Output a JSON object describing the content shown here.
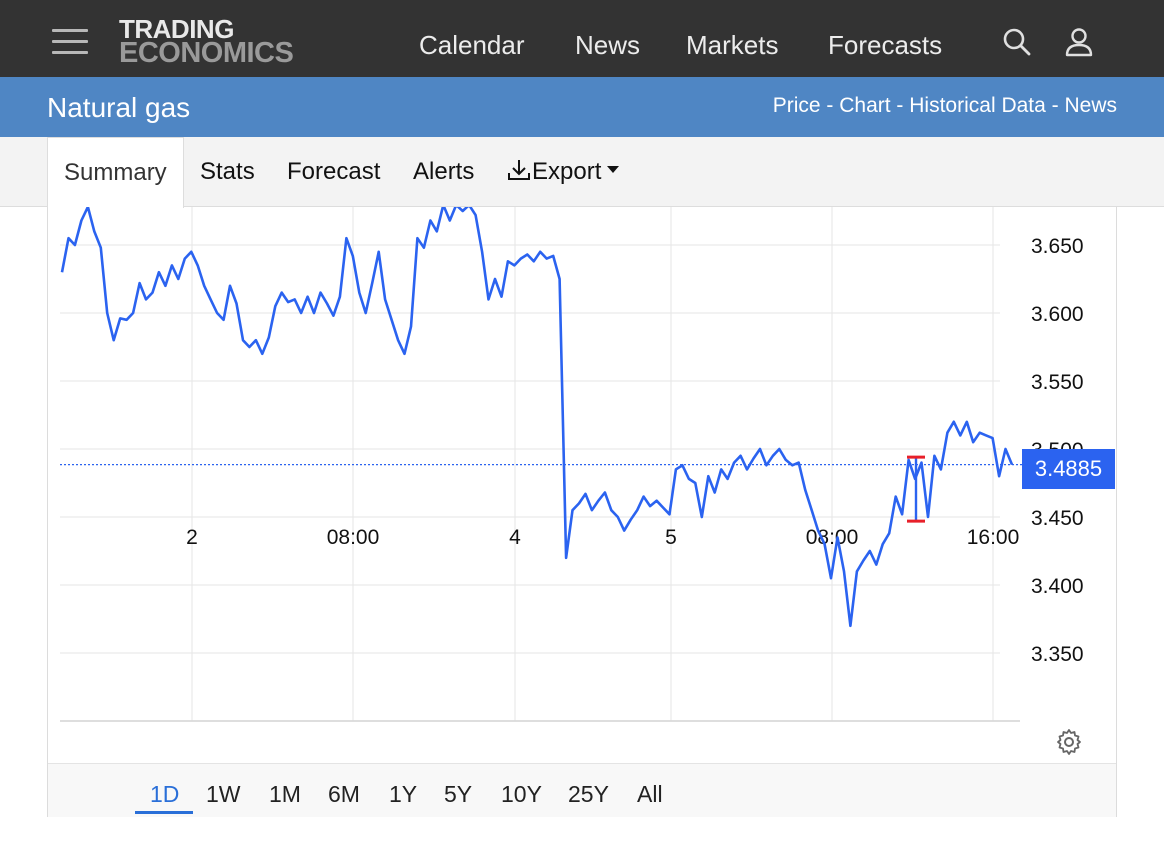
{
  "brand": {
    "line1": "TRADING",
    "line2": "ECONOMICS"
  },
  "nav": [
    "Calendar",
    "News",
    "Markets",
    "Forecasts"
  ],
  "page": {
    "title": "Natural gas",
    "links": [
      "Price",
      "Chart",
      "Historical Data",
      "News"
    ],
    "link_separator": " - "
  },
  "tabs": [
    "Summary",
    "Stats",
    "Forecast",
    "Alerts",
    "Export"
  ],
  "ranges": [
    "1D",
    "1W",
    "1M",
    "6M",
    "1Y",
    "5Y",
    "10Y",
    "25Y",
    "All"
  ],
  "active_range": "1D",
  "icons": {
    "menu": "hamburger-icon",
    "search": "search-icon",
    "user": "user-icon",
    "export": "download-icon",
    "dropdown": "caret-down-icon",
    "settings": "gear-icon"
  },
  "colors": {
    "line": "#2b63f0",
    "accent": "#2a6fd8",
    "header": "#333333",
    "titlebar": "#4f86c4",
    "marker": "#e8202a"
  },
  "current_price_label": "3.4885",
  "chart_data": {
    "type": "line",
    "title": "",
    "xlabel": "",
    "ylabel": "",
    "x_ticks": [
      "2",
      "08:00",
      "4",
      "5",
      "08:00",
      "16:00"
    ],
    "y_ticks": [
      "3.650",
      "3.600",
      "3.550",
      "3.500",
      "3.450",
      "3.400",
      "3.350"
    ],
    "ylim": [
      3.31,
      3.686
    ],
    "current_price": 3.4885,
    "grid": true,
    "legend": "none",
    "series": [
      {
        "values": [
          3.63,
          3.655,
          3.65,
          3.668,
          3.678,
          3.66,
          3.648,
          3.6,
          3.58,
          3.596,
          3.595,
          3.6,
          3.622,
          3.61,
          3.615,
          3.63,
          3.62,
          3.635,
          3.625,
          3.64,
          3.645,
          3.635,
          3.62,
          3.61,
          3.6,
          3.595,
          3.62,
          3.607,
          3.58,
          3.575,
          3.58,
          3.57,
          3.582,
          3.605,
          3.615,
          3.608,
          3.61,
          3.6,
          3.612,
          3.6,
          3.615,
          3.607,
          3.598,
          3.612,
          3.655,
          3.642,
          3.615,
          3.6,
          3.622,
          3.645,
          3.61,
          3.595,
          3.58,
          3.57,
          3.59,
          3.655,
          3.648,
          3.668,
          3.66,
          3.682,
          3.668,
          3.69,
          3.675,
          3.69,
          3.672,
          3.645,
          3.61,
          3.625,
          3.612,
          3.638,
          3.635,
          3.64,
          3.643,
          3.638,
          3.645,
          3.64,
          3.642,
          3.625,
          3.42,
          3.455,
          3.46,
          3.467,
          3.455,
          3.462,
          3.468,
          3.455,
          3.45,
          3.44,
          3.448,
          3.455,
          3.465,
          3.458,
          3.462,
          3.457,
          3.452,
          3.485,
          3.488,
          3.478,
          3.475,
          3.45,
          3.48,
          3.468,
          3.485,
          3.478,
          3.49,
          3.495,
          3.485,
          3.493,
          3.5,
          3.488,
          3.495,
          3.5,
          3.492,
          3.488,
          3.49,
          3.47,
          3.455,
          3.44,
          3.43,
          3.405,
          3.435,
          3.41,
          3.37,
          3.41,
          3.418,
          3.425,
          3.415,
          3.43,
          3.438,
          3.465,
          3.452,
          3.492,
          3.478,
          3.49,
          3.45,
          3.495,
          3.485,
          3.512,
          3.52,
          3.51,
          3.52,
          3.505,
          3.512,
          3.51,
          3.508,
          3.48,
          3.5,
          3.4885
        ]
      }
    ],
    "annotations": [
      {
        "type": "high-low-marker",
        "high": 3.494,
        "low": 3.447
      }
    ]
  }
}
